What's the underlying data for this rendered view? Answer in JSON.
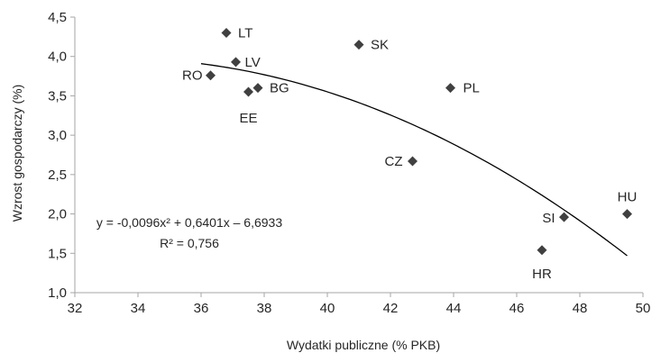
{
  "chart_data": {
    "type": "scatter",
    "title": "",
    "xlabel": "Wydatki publiczne (% PKB)",
    "ylabel": "Wzrost gospodarczy (%)",
    "xlim": [
      32,
      50
    ],
    "ylim": [
      1.0,
      4.5
    ],
    "x_ticks": [
      32,
      34,
      36,
      38,
      40,
      42,
      44,
      46,
      48,
      50
    ],
    "x_tick_labels": [
      "32",
      "34",
      "36",
      "38",
      "40",
      "42",
      "44",
      "46",
      "48",
      "50"
    ],
    "y_ticks": [
      1.0,
      1.5,
      2.0,
      2.5,
      3.0,
      3.5,
      4.0,
      4.5
    ],
    "y_tick_labels": [
      "1,0",
      "1,5",
      "2,0",
      "2,5",
      "3,0",
      "3,5",
      "4,0",
      "4,5"
    ],
    "grid": false,
    "legend": "none",
    "marker": "diamond",
    "colors": {
      "points": "#404040",
      "trendline": "#000000",
      "axis": "#a6a6a6"
    },
    "points": [
      {
        "label": "LT",
        "x": 36.8,
        "y": 4.3
      },
      {
        "label": "LV",
        "x": 37.1,
        "y": 3.93
      },
      {
        "label": "RO",
        "x": 36.3,
        "y": 3.76
      },
      {
        "label": "EE",
        "x": 37.5,
        "y": 3.55
      },
      {
        "label": "BG",
        "x": 37.8,
        "y": 3.6
      },
      {
        "label": "SK",
        "x": 41.0,
        "y": 4.15
      },
      {
        "label": "PL",
        "x": 43.9,
        "y": 3.6
      },
      {
        "label": "CZ",
        "x": 42.7,
        "y": 2.67
      },
      {
        "label": "SI",
        "x": 47.5,
        "y": 1.96
      },
      {
        "label": "HU",
        "x": 49.5,
        "y": 2.0
      },
      {
        "label": "HR",
        "x": 46.8,
        "y": 1.54
      }
    ],
    "trendline": {
      "type": "polynomial-2",
      "coefficients": {
        "a": -0.0096,
        "b": 0.6401,
        "c": -6.6933
      },
      "x_range": [
        36.0,
        49.5
      ],
      "equation_text": "y = -0,0096x² + 0,6401x – 6,6933",
      "r2_text": "R² = 0,756"
    }
  }
}
